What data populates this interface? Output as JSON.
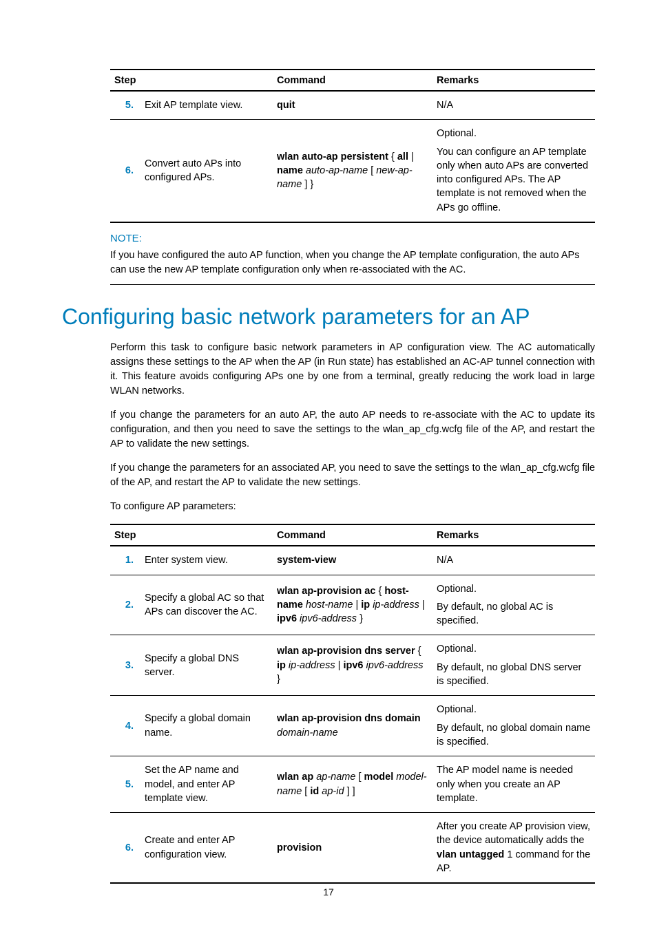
{
  "colors": {
    "accent": "#007dba",
    "text": "#000000",
    "rule_heavy": "#000000",
    "rule_light": "#000000",
    "background": "#ffffff"
  },
  "typography": {
    "body_family": "Arial, Helvetica, sans-serif",
    "body_size_pt": 11,
    "heading_size_pt": 24,
    "heading_weight": 400
  },
  "table1": {
    "headers": {
      "step": "Step",
      "command": "Command",
      "remarks": "Remarks"
    },
    "rows": [
      {
        "num": "5.",
        "desc": "Exit AP template view.",
        "cmd": [
          {
            "t": "quit",
            "style": "b"
          }
        ],
        "remarks": [
          {
            "t": "N/A"
          }
        ]
      },
      {
        "num": "6.",
        "desc": "Convert auto APs into configured APs.",
        "cmd": [
          {
            "t": "wlan auto-ap persistent",
            "style": "b"
          },
          {
            "t": " { "
          },
          {
            "t": "all",
            "style": "b"
          },
          {
            "t": " | "
          },
          {
            "t": "name",
            "style": "b"
          },
          {
            "t": " "
          },
          {
            "t": "auto-ap-name",
            "style": "i"
          },
          {
            "t": " [ "
          },
          {
            "t": "new-ap-name",
            "style": "i"
          },
          {
            "t": " ] }"
          }
        ],
        "remarks": [
          {
            "t": "Optional."
          },
          {
            "br": true
          },
          {
            "t": "You can configure an AP template only when auto APs are converted into configured APs. The AP template is not removed when the APs go offline."
          }
        ]
      }
    ]
  },
  "note": {
    "label": "NOTE:",
    "text": "If you have configured the auto AP function, when you change the AP template configuration, the auto APs can use the new AP template configuration only when re-associated with the AC."
  },
  "heading": "Configuring basic network parameters for an AP",
  "para1": "Perform this task to configure basic network parameters in AP configuration view. The AC automatically assigns these settings to the AP when the AP (in Run state) has established an AC-AP tunnel connection with it. This feature avoids configuring APs one by one from a terminal, greatly reducing the work load in large WLAN networks.",
  "para2": "If you change the parameters for an auto AP, the auto AP needs to re-associate with the AC to update its configuration, and then you need to save the settings to the wlan_ap_cfg.wcfg file of the AP, and restart the AP to validate the new settings.",
  "para3": "If you change the parameters for an associated AP, you need to save the settings to the wlan_ap_cfg.wcfg file of the AP, and restart the AP to validate the new settings.",
  "para4": "To configure AP parameters:",
  "table2": {
    "headers": {
      "step": "Step",
      "command": "Command",
      "remarks": "Remarks"
    },
    "rows": [
      {
        "num": "1.",
        "desc": "Enter system view.",
        "cmd": [
          {
            "t": "system-view",
            "style": "b"
          }
        ],
        "remarks": [
          {
            "t": "N/A"
          }
        ]
      },
      {
        "num": "2.",
        "desc": "Specify a global AC so that APs can discover the AC.",
        "cmd": [
          {
            "t": "wlan ap-provision ac",
            "style": "b"
          },
          {
            "t": " { "
          },
          {
            "t": "host-name",
            "style": "b"
          },
          {
            "t": " "
          },
          {
            "t": "host-name",
            "style": "i"
          },
          {
            "t": " | "
          },
          {
            "t": "ip",
            "style": "b"
          },
          {
            "t": " "
          },
          {
            "t": "ip-address",
            "style": "i"
          },
          {
            "t": " | "
          },
          {
            "t": "ipv6",
            "style": "b"
          },
          {
            "t": " "
          },
          {
            "t": "ipv6-address",
            "style": "i"
          },
          {
            "t": " }"
          }
        ],
        "remarks": [
          {
            "t": "Optional."
          },
          {
            "br": true
          },
          {
            "t": "By default, no global AC is specified."
          }
        ]
      },
      {
        "num": "3.",
        "desc": "Specify a global DNS server.",
        "cmd": [
          {
            "t": "wlan ap-provision dns server",
            "style": "b"
          },
          {
            "t": " { "
          },
          {
            "t": "ip",
            "style": "b"
          },
          {
            "t": " "
          },
          {
            "t": "ip-address",
            "style": "i"
          },
          {
            "t": " | "
          },
          {
            "t": "ipv6",
            "style": "b"
          },
          {
            "t": " "
          },
          {
            "t": "ipv6-address",
            "style": "i"
          },
          {
            "t": " }"
          }
        ],
        "remarks": [
          {
            "t": "Optional."
          },
          {
            "br": true
          },
          {
            "t": "By default, no global DNS server is specified."
          }
        ]
      },
      {
        "num": "4.",
        "desc": "Specify a global domain name.",
        "cmd": [
          {
            "t": "wlan ap-provision dns domain",
            "style": "b"
          },
          {
            "t": " "
          },
          {
            "t": "domain-name",
            "style": "i"
          }
        ],
        "remarks": [
          {
            "t": "Optional."
          },
          {
            "br": true
          },
          {
            "t": "By default, no global domain name is specified."
          }
        ]
      },
      {
        "num": "5.",
        "desc": "Set the AP name and model, and enter AP template view.",
        "cmd": [
          {
            "t": "wlan ap",
            "style": "b"
          },
          {
            "t": " "
          },
          {
            "t": "ap-name",
            "style": "i"
          },
          {
            "t": " [ "
          },
          {
            "t": "model",
            "style": "b"
          },
          {
            "t": " "
          },
          {
            "t": "model-name",
            "style": "i"
          },
          {
            "t": " [ "
          },
          {
            "t": "id",
            "style": "b"
          },
          {
            "t": " "
          },
          {
            "t": "ap-id",
            "style": "i"
          },
          {
            "t": " ] ]"
          }
        ],
        "remarks": [
          {
            "t": "The AP model name is needed only when you create an AP template."
          }
        ]
      },
      {
        "num": "6.",
        "desc": "Create and enter AP configuration view.",
        "cmd": [
          {
            "t": "provision",
            "style": "b"
          }
        ],
        "remarks": [
          {
            "t": "After you create AP provision view, the device automatically adds the "
          },
          {
            "t": "vlan untagged",
            "style": "b"
          },
          {
            "t": " 1 command for the AP."
          }
        ]
      }
    ]
  },
  "page_number": "17"
}
